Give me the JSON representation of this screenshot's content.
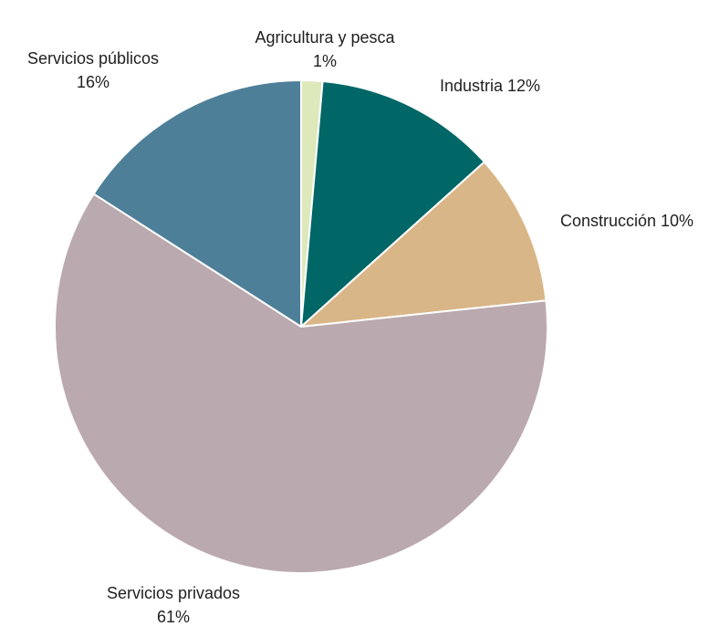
{
  "chart_data": {
    "type": "pie",
    "title": "",
    "start_angle_deg": 0,
    "direction": "clockwise",
    "slices": [
      {
        "label": "Agricultura y pesca",
        "value": 1.4,
        "display": "1%",
        "color": "#dde8bb",
        "label_lines": [
          "Agricultura y pesca",
          "1%"
        ]
      },
      {
        "label": "Industria",
        "value": 12,
        "display": "12%",
        "color": "#006666",
        "label_lines": [
          "Industria 12%"
        ]
      },
      {
        "label": "Construcción",
        "value": 10,
        "display": "10%",
        "color": "#d9b688",
        "label_lines": [
          "Construcción 10%"
        ]
      },
      {
        "label": "Servicios privados",
        "value": 61,
        "display": "61%",
        "color": "#baa9ae",
        "label_lines": [
          "Servicios privados",
          "61%"
        ]
      },
      {
        "label": "Servicios públicos",
        "value": 16,
        "display": "16%",
        "color": "#4e7f98",
        "label_lines": [
          "Servicios públicos",
          "16%"
        ]
      }
    ]
  }
}
